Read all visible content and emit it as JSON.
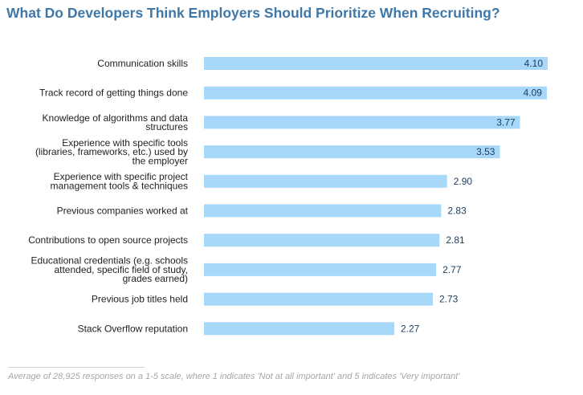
{
  "chart_data": {
    "type": "bar",
    "orientation": "horizontal",
    "title": "What Do Developers Think Employers Should Prioritize When Recruiting?",
    "categories": [
      "Communication skills",
      "Track record of getting things done",
      "Knowledge of algorithms and data structures",
      "Experience with specific tools (libraries, frameworks, etc.) used by the employer",
      "Experience with specific project management tools & techniques",
      "Previous companies worked at",
      "Contributions to open source projects",
      "Educational credentials (e.g. schools attended, specific field of study, grades earned)",
      "Previous job titles held",
      "Stack Overflow reputation"
    ],
    "category_label_lines": [
      [
        "Communication skills"
      ],
      [
        "Track record of getting things done"
      ],
      [
        "Knowledge of algorithms and data",
        "structures"
      ],
      [
        "Experience with specific tools",
        "(libraries, frameworks, etc.) used by",
        "the employer"
      ],
      [
        "Experience with specific project",
        "management tools & techniques"
      ],
      [
        "Previous companies worked at"
      ],
      [
        "Contributions to open source projects"
      ],
      [
        "Educational credentials (e.g. schools",
        "attended, specific field of study,",
        "grades earned)"
      ],
      [
        "Previous job titles held"
      ],
      [
        "Stack Overflow reputation"
      ]
    ],
    "values": [
      4.1,
      4.09,
      3.77,
      3.53,
      2.9,
      2.83,
      2.81,
      2.77,
      2.73,
      2.27
    ],
    "value_labels": [
      "4.10",
      "4.09",
      "3.77",
      "3.53",
      "2.90",
      "2.83",
      "2.81",
      "2.77",
      "2.73",
      "2.27"
    ],
    "xlim": [
      0,
      4.1
    ],
    "grid": false,
    "bar_color": "#a7d7f9",
    "label_color": "#222222",
    "value_color": "#1d3b5c"
  },
  "footnote": "Average of 28,925 responses on a 1-5 scale, where 1 indicates 'Not at all important' and 5 indicates 'Very important'"
}
